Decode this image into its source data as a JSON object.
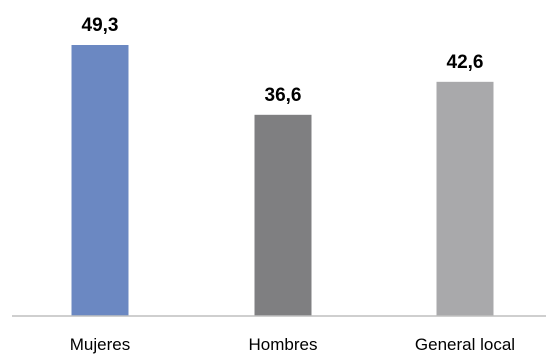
{
  "chart_data": {
    "type": "bar",
    "categories": [
      "Mujeres",
      "Hombres",
      "General local"
    ],
    "values": [
      49.3,
      36.6,
      42.6
    ],
    "value_labels": [
      "49,3",
      "36,6",
      "42,6"
    ],
    "colors": [
      "#6b88c2",
      "#7f7f81",
      "#a9a9ab"
    ],
    "axis_color": "#bfbfbf",
    "ylim": [
      0,
      49.3
    ],
    "title": "",
    "xlabel": "",
    "ylabel": "",
    "grid": false,
    "legend": "none"
  }
}
